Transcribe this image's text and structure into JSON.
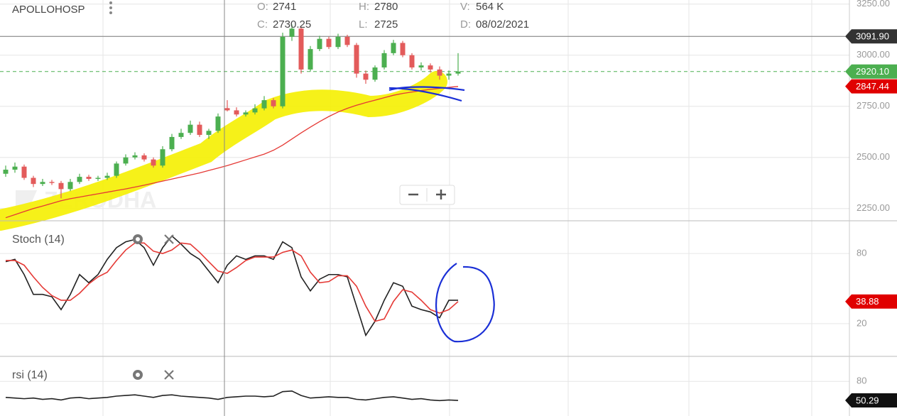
{
  "header": {
    "symbol": "APOLLOHOSP",
    "fields": [
      {
        "label": "O:",
        "value": "2741"
      },
      {
        "label": "C:",
        "value": "2730.25"
      },
      {
        "label": "H:",
        "value": "2780"
      },
      {
        "label": "L:",
        "value": "2725"
      },
      {
        "label": "V:",
        "value": "564 K"
      },
      {
        "label": "D:",
        "value": "08/02/2021"
      }
    ]
  },
  "watermark": "ZERODHA",
  "chart_data": [
    {
      "type": "candlestick",
      "open": [
        2420,
        2440,
        2455,
        2400,
        2370,
        2380,
        2375,
        2345,
        2380,
        2405,
        2395,
        2400,
        2410,
        2470,
        2500,
        2510,
        2490,
        2460,
        2540,
        2600,
        2620,
        2660,
        2610,
        2630,
        2741,
        2730.25,
        2710,
        2720,
        2740,
        2780,
        2750,
        3090,
        3130,
        2930,
        3030,
        3080,
        3040,
        3090,
        3050,
        2910,
        2880,
        2940,
        3010,
        3060,
        3000,
        2940,
        2950,
        2930,
        2900,
        2910
      ],
      "high": [
        2460,
        2475,
        2465,
        2410,
        2395,
        2390,
        2385,
        2395,
        2420,
        2415,
        2410,
        2425,
        2480,
        2515,
        2525,
        2520,
        2500,
        2555,
        2615,
        2640,
        2680,
        2675,
        2640,
        2715,
        2780,
        2745,
        2730,
        2760,
        2800,
        2790,
        3110,
        3150,
        3140,
        3045,
        3095,
        3090,
        3105,
        3100,
        3060,
        2925,
        2950,
        3025,
        3075,
        3070,
        3010,
        2965,
        2960,
        2945,
        2925,
        3010
      ],
      "low": [
        2405,
        2425,
        2390,
        2355,
        2360,
        2365,
        2300,
        2335,
        2370,
        2385,
        2385,
        2390,
        2400,
        2460,
        2490,
        2480,
        2450,
        2450,
        2530,
        2590,
        2610,
        2600,
        2590,
        2620,
        2725,
        2700,
        2700,
        2710,
        2730,
        2740,
        2740,
        3070,
        2910,
        2920,
        3020,
        3030,
        3030,
        3040,
        2890,
        2860,
        2870,
        2930,
        3000,
        2990,
        2930,
        2925,
        2915,
        2880,
        2880,
        2900
      ],
      "close": [
        2440,
        2455,
        2400,
        2370,
        2380,
        2375,
        2345,
        2380,
        2405,
        2395,
        2400,
        2410,
        2470,
        2500,
        2510,
        2490,
        2460,
        2540,
        2600,
        2620,
        2660,
        2610,
        2630,
        2700,
        2730.25,
        2710,
        2720,
        2740,
        2780,
        2750,
        3090,
        3130,
        2930,
        3030,
        3080,
        3040,
        3090,
        3050,
        2910,
        2880,
        2940,
        3010,
        3060,
        3000,
        2940,
        2950,
        2930,
        2900,
        2910,
        2920.1
      ],
      "up_color": "#4caf50",
      "down_color": "#e35b5b",
      "overlay": {
        "color": "#e53935",
        "values": [
          2205,
          2220,
          2235,
          2250,
          2262,
          2275,
          2288,
          2298,
          2306,
          2314,
          2322,
          2330,
          2338,
          2346,
          2355,
          2364,
          2374,
          2384,
          2394,
          2404,
          2414,
          2424,
          2436,
          2448,
          2460,
          2474,
          2488,
          2502,
          2516,
          2535,
          2560,
          2590,
          2620,
          2648,
          2675,
          2700,
          2722,
          2740,
          2755,
          2768,
          2780,
          2792,
          2804,
          2813,
          2820,
          2827,
          2833,
          2838,
          2843,
          2847
        ]
      },
      "ylim": [
        2190,
        3270
      ],
      "yticks": [
        {
          "value": 3250,
          "label": "3250.00"
        },
        {
          "value": 3000,
          "label": "3000.00"
        },
        {
          "value": 2750,
          "label": "2750.00"
        },
        {
          "value": 2500,
          "label": "2500.00"
        },
        {
          "value": 2250,
          "label": "2250.00"
        }
      ],
      "grid": true,
      "price_tags": [
        {
          "value": 3091.9,
          "label": "3091.90",
          "color": "#333333",
          "line": "solid"
        },
        {
          "value": 2920.1,
          "label": "2920.10",
          "color": "#4caf50",
          "line": "dashed"
        },
        {
          "value": 2847.44,
          "label": "2847.44",
          "color": "#e00000"
        }
      ]
    },
    {
      "type": "line",
      "title": "Stoch (14)",
      "series": [
        {
          "color": "#222222",
          "values": [
            73,
            75,
            62,
            45,
            45,
            43,
            32,
            45,
            62,
            55,
            62,
            75,
            85,
            90,
            92,
            85,
            70,
            85,
            95,
            88,
            80,
            75,
            65,
            55,
            70,
            78,
            75,
            78,
            78,
            75,
            90,
            85,
            60,
            48,
            58,
            62,
            62,
            60,
            35,
            10,
            22,
            40,
            55,
            52,
            35,
            32,
            30,
            25,
            40,
            40
          ]
        },
        {
          "color": "#e53935",
          "values": [
            74,
            74,
            70,
            60,
            51,
            44,
            40,
            40,
            46,
            54,
            60,
            64,
            74,
            83,
            89,
            89,
            82,
            80,
            83,
            89,
            88,
            81,
            73,
            65,
            63,
            68,
            74,
            77,
            77,
            77,
            81,
            83,
            78,
            64,
            55,
            56,
            61,
            61,
            52,
            35,
            22,
            24,
            39,
            49,
            47,
            40,
            32,
            29,
            32,
            38.88
          ]
        }
      ],
      "ylim": [
        -8,
        108
      ],
      "yticks": [
        20,
        80
      ],
      "grid": true,
      "last_tag": {
        "value": 38.88,
        "label": "38.88",
        "color": "#e00000"
      }
    },
    {
      "type": "line",
      "title": "rsi (14)",
      "series": [
        {
          "color": "#222222",
          "values": [
            55,
            54,
            53,
            54,
            52,
            53,
            51,
            54,
            55,
            53,
            54,
            55,
            57,
            58,
            59,
            57,
            55,
            58,
            59,
            57,
            56,
            55,
            54,
            52,
            55,
            56,
            57,
            57,
            56,
            57,
            64,
            65,
            58,
            54,
            55,
            56,
            55,
            55,
            52,
            51,
            53,
            55,
            56,
            54,
            52,
            53,
            51,
            50,
            51,
            50.29
          ]
        }
      ],
      "ylim": [
        26,
        119
      ],
      "yticks": [
        80
      ],
      "grid": true,
      "last_tag": {
        "value": 50.29,
        "label": "50.29",
        "color": "#111111"
      }
    }
  ]
}
